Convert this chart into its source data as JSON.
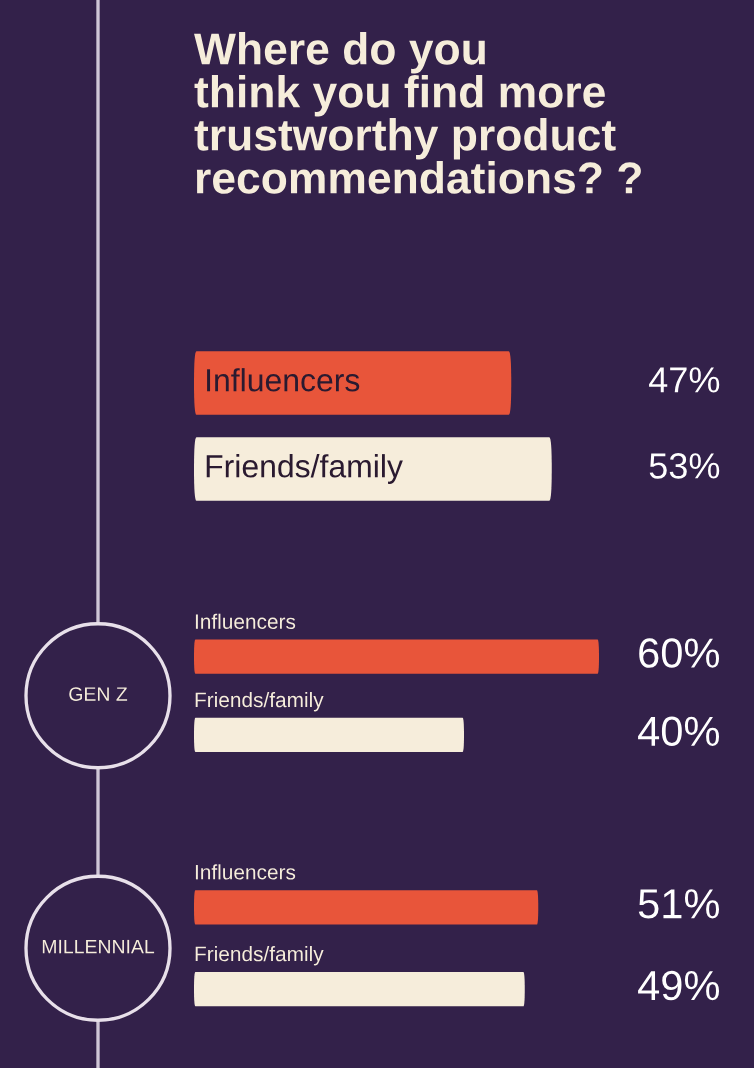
{
  "chart_data": [
    {
      "type": "bar",
      "orientation": "horizontal",
      "title": "Where do you\nthink you find more\ntrustworthy product\nrecommendations? ?",
      "categories": [
        "Influencers",
        "Friends/family"
      ],
      "values": [
        47,
        53
      ],
      "value_labels": [
        "47%",
        "53%"
      ],
      "colors": [
        "#e8553a",
        "#f6eddb"
      ],
      "tick_labels": false
    },
    {
      "type": "bar",
      "orientation": "horizontal",
      "title": "GEN Z",
      "categories": [
        "Influencers",
        "Friends/family"
      ],
      "values": [
        60,
        40
      ],
      "value_labels": [
        "60%",
        "40%"
      ],
      "colors": [
        "#e8553a",
        "#f6eddb"
      ],
      "tick_labels": false
    },
    {
      "type": "bar",
      "orientation": "horizontal",
      "title": "MILLENNIAL",
      "categories": [
        "Influencers",
        "Friends/family"
      ],
      "values": [
        51,
        49
      ],
      "value_labels": [
        "51%",
        "49%"
      ],
      "colors": [
        "#e8553a",
        "#f6eddb"
      ],
      "tick_labels": false
    }
  ]
}
